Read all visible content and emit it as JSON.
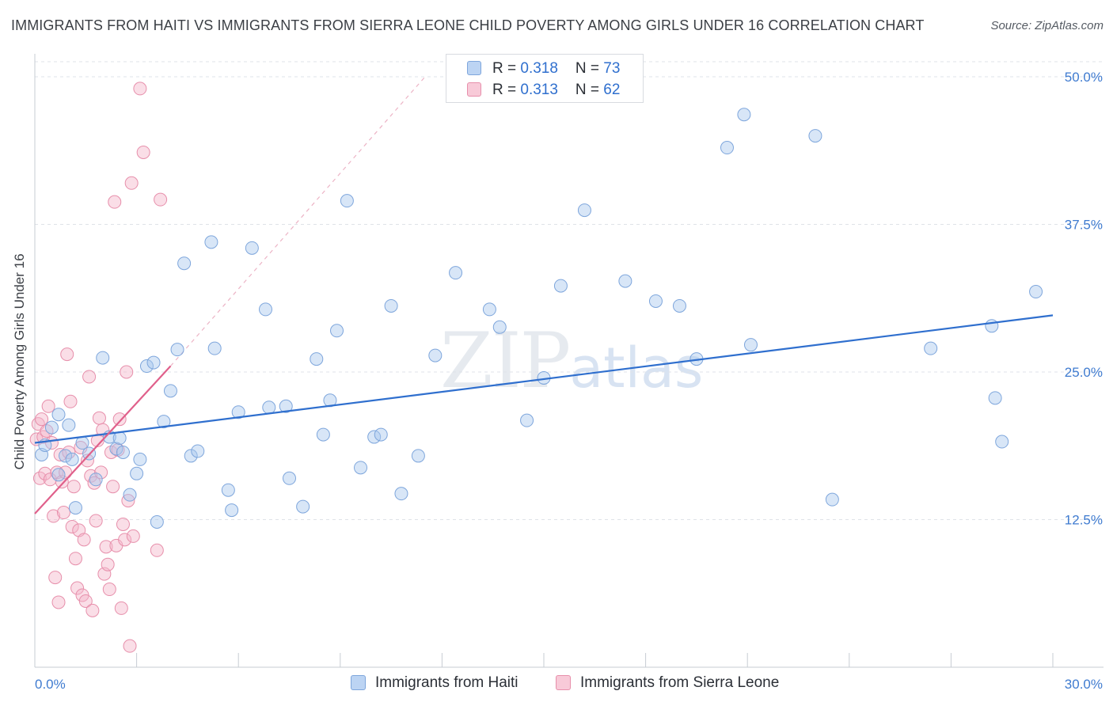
{
  "title": "IMMIGRANTS FROM HAITI VS IMMIGRANTS FROM SIERRA LEONE CHILD POVERTY AMONG GIRLS UNDER 16 CORRELATION CHART",
  "source": "Source: ZipAtlas.com",
  "watermark": {
    "zip": "ZIP",
    "atlas": "atlas"
  },
  "legend": {
    "haiti": {
      "r_label": "R = ",
      "r_value": "0.318",
      "n_label": "N = ",
      "n_value": "73"
    },
    "sierra": {
      "r_label": "R = ",
      "r_value": "0.313",
      "n_label": "N = ",
      "n_value": "62"
    }
  },
  "colors": {
    "haiti_fill": "#a9c8ee",
    "haiti_stroke": "#7ea6dc",
    "haiti_line": "#2f6fce",
    "sierra_fill": "#f5b6c9",
    "sierra_stroke": "#e78fab",
    "sierra_line": "#e0608b",
    "grid": "#dfe3e8",
    "tick_label": "#3f7bd0"
  },
  "chart_data": {
    "type": "scatter",
    "title": "IMMIGRANTS FROM HAITI VS IMMIGRANTS FROM SIERRA LEONE CHILD POVERTY AMONG GIRLS UNDER 16 CORRELATION CHART",
    "xlabel": "",
    "ylabel": "Child Poverty Among Girls Under 16",
    "xlim": [
      0,
      30
    ],
    "ylim": [
      0,
      50
    ],
    "x_tick_labels": [
      "0.0%",
      "30.0%"
    ],
    "y_ticks": [
      12.5,
      25.0,
      37.5,
      50.0
    ],
    "y_tick_labels": [
      "12.5%",
      "25.0%",
      "37.5%",
      "50.0%"
    ],
    "grid": true,
    "legend_position": "top-center",
    "series": [
      {
        "name": "Immigrants from Haiti",
        "r": 0.318,
        "n": 73,
        "trend": {
          "x": [
            0,
            30
          ],
          "y": [
            19.0,
            29.8
          ]
        },
        "points": [
          [
            0.2,
            18.0
          ],
          [
            0.3,
            18.8
          ],
          [
            0.5,
            20.3
          ],
          [
            0.7,
            21.4
          ],
          [
            0.7,
            16.3
          ],
          [
            0.9,
            17.9
          ],
          [
            1.0,
            20.5
          ],
          [
            1.1,
            17.6
          ],
          [
            1.2,
            13.5
          ],
          [
            1.4,
            19.0
          ],
          [
            1.6,
            18.1
          ],
          [
            1.8,
            15.9
          ],
          [
            2.0,
            26.2
          ],
          [
            2.2,
            19.5
          ],
          [
            2.4,
            18.5
          ],
          [
            2.5,
            19.4
          ],
          [
            2.6,
            18.2
          ],
          [
            2.8,
            14.6
          ],
          [
            3.0,
            16.4
          ],
          [
            3.1,
            17.6
          ],
          [
            3.3,
            25.5
          ],
          [
            3.5,
            25.8
          ],
          [
            3.6,
            12.3
          ],
          [
            3.8,
            20.8
          ],
          [
            4.0,
            23.4
          ],
          [
            4.2,
            26.9
          ],
          [
            4.4,
            34.2
          ],
          [
            4.6,
            17.9
          ],
          [
            4.8,
            18.3
          ],
          [
            5.2,
            36.0
          ],
          [
            5.3,
            27.0
          ],
          [
            5.7,
            15.0
          ],
          [
            5.8,
            13.3
          ],
          [
            6.0,
            21.6
          ],
          [
            6.4,
            35.5
          ],
          [
            6.8,
            30.3
          ],
          [
            6.9,
            22.0
          ],
          [
            7.4,
            22.1
          ],
          [
            7.5,
            16.0
          ],
          [
            7.9,
            13.6
          ],
          [
            8.3,
            26.1
          ],
          [
            8.5,
            19.7
          ],
          [
            8.7,
            22.6
          ],
          [
            8.9,
            28.5
          ],
          [
            9.2,
            39.5
          ],
          [
            9.6,
            16.9
          ],
          [
            10.0,
            19.5
          ],
          [
            10.2,
            19.7
          ],
          [
            10.5,
            30.6
          ],
          [
            10.8,
            14.7
          ],
          [
            11.3,
            17.9
          ],
          [
            11.8,
            26.4
          ],
          [
            12.4,
            33.4
          ],
          [
            13.4,
            30.3
          ],
          [
            13.7,
            28.8
          ],
          [
            14.5,
            20.9
          ],
          [
            15.0,
            24.5
          ],
          [
            15.5,
            32.3
          ],
          [
            16.2,
            38.7
          ],
          [
            17.4,
            32.7
          ],
          [
            18.3,
            31.0
          ],
          [
            19.0,
            30.6
          ],
          [
            19.5,
            26.1
          ],
          [
            20.4,
            44.0
          ],
          [
            20.9,
            46.8
          ],
          [
            21.1,
            27.3
          ],
          [
            23.0,
            45.0
          ],
          [
            23.5,
            14.2
          ],
          [
            26.4,
            27.0
          ],
          [
            28.2,
            28.9
          ],
          [
            28.3,
            22.8
          ],
          [
            28.5,
            19.1
          ],
          [
            29.5,
            31.8
          ]
        ]
      },
      {
        "name": "Immigrants from Sierra Leone",
        "r": 0.313,
        "n": 62,
        "trend": {
          "x": [
            0,
            4.0
          ],
          "y": [
            13.0,
            25.5
          ]
        },
        "trend_extension": {
          "x": [
            4.0,
            11.5
          ],
          "y": [
            25.5,
            50.0
          ]
        },
        "points": [
          [
            0.05,
            19.3
          ],
          [
            0.1,
            20.6
          ],
          [
            0.15,
            16.0
          ],
          [
            0.2,
            21.0
          ],
          [
            0.25,
            19.5
          ],
          [
            0.3,
            16.4
          ],
          [
            0.35,
            20.0
          ],
          [
            0.4,
            22.1
          ],
          [
            0.45,
            15.9
          ],
          [
            0.5,
            19.0
          ],
          [
            0.55,
            12.8
          ],
          [
            0.6,
            7.6
          ],
          [
            0.65,
            16.5
          ],
          [
            0.7,
            5.5
          ],
          [
            0.75,
            18.0
          ],
          [
            0.8,
            15.7
          ],
          [
            0.85,
            13.1
          ],
          [
            0.9,
            16.5
          ],
          [
            0.95,
            26.5
          ],
          [
            1.0,
            18.2
          ],
          [
            1.05,
            22.5
          ],
          [
            1.1,
            11.9
          ],
          [
            1.15,
            15.3
          ],
          [
            1.2,
            9.2
          ],
          [
            1.25,
            6.7
          ],
          [
            1.3,
            11.6
          ],
          [
            1.35,
            18.6
          ],
          [
            1.4,
            6.1
          ],
          [
            1.45,
            10.8
          ],
          [
            1.5,
            5.6
          ],
          [
            1.55,
            17.5
          ],
          [
            1.6,
            24.6
          ],
          [
            1.65,
            16.2
          ],
          [
            1.7,
            4.8
          ],
          [
            1.75,
            15.6
          ],
          [
            1.8,
            12.4
          ],
          [
            1.85,
            19.2
          ],
          [
            1.9,
            21.1
          ],
          [
            1.95,
            16.5
          ],
          [
            2.0,
            20.1
          ],
          [
            2.05,
            7.9
          ],
          [
            2.1,
            10.2
          ],
          [
            2.15,
            8.7
          ],
          [
            2.2,
            6.6
          ],
          [
            2.25,
            18.2
          ],
          [
            2.3,
            15.3
          ],
          [
            2.35,
            39.4
          ],
          [
            2.4,
            10.3
          ],
          [
            2.45,
            18.4
          ],
          [
            2.5,
            21.0
          ],
          [
            2.55,
            5.0
          ],
          [
            2.6,
            12.1
          ],
          [
            2.65,
            10.8
          ],
          [
            2.7,
            25.0
          ],
          [
            2.75,
            14.1
          ],
          [
            2.8,
            1.8
          ],
          [
            2.85,
            41.0
          ],
          [
            2.9,
            11.1
          ],
          [
            3.1,
            49.0
          ],
          [
            3.2,
            43.6
          ],
          [
            3.6,
            9.9
          ],
          [
            3.7,
            39.6
          ]
        ]
      }
    ]
  },
  "bottom_legend": {
    "haiti_label": "Immigrants from Haiti",
    "sierra_label": "Immigrants from Sierra Leone"
  }
}
